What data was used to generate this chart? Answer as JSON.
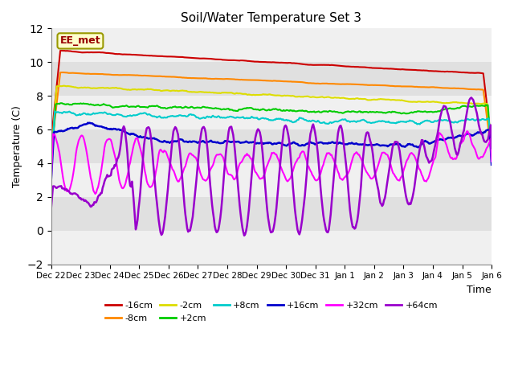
{
  "title": "Soil/Water Temperature Set 3",
  "xlabel": "Time",
  "ylabel": "Temperature (C)",
  "ylim": [
    -2,
    12
  ],
  "background_color": "#ffffff",
  "plot_bg_color": "#d8d8d8",
  "grid_color": "#f0f0f0",
  "annotation_label": "EE_met",
  "annotation_bg": "#ffffcc",
  "annotation_border": "#999900",
  "series": [
    {
      "label": "-16cm",
      "color": "#cc0000",
      "lw": 1.5
    },
    {
      "label": "-8cm",
      "color": "#ff8800",
      "lw": 1.5
    },
    {
      "label": "-2cm",
      "color": "#dddd00",
      "lw": 1.5
    },
    {
      "label": "+2cm",
      "color": "#00cc00",
      "lw": 1.5
    },
    {
      "label": "+8cm",
      "color": "#00cccc",
      "lw": 1.5
    },
    {
      "label": "+16cm",
      "color": "#0000cc",
      "lw": 1.8
    },
    {
      "label": "+32cm",
      "color": "#ff00ff",
      "lw": 1.5
    },
    {
      "label": "+64cm",
      "color": "#9900cc",
      "lw": 1.8
    }
  ],
  "xtick_labels": [
    "Dec 22",
    "Dec 23",
    "Dec 24",
    "Dec 25",
    "Dec 26",
    "Dec 27",
    "Dec 28",
    "Dec 29",
    "Dec 30",
    "Dec 31",
    "Jan 1",
    "Jan 2",
    "Jan 3",
    "Jan 4",
    "Jan 5",
    "Jan 6"
  ],
  "n_points": 480,
  "yticks": [
    -2,
    0,
    2,
    4,
    6,
    8,
    10,
    12
  ]
}
